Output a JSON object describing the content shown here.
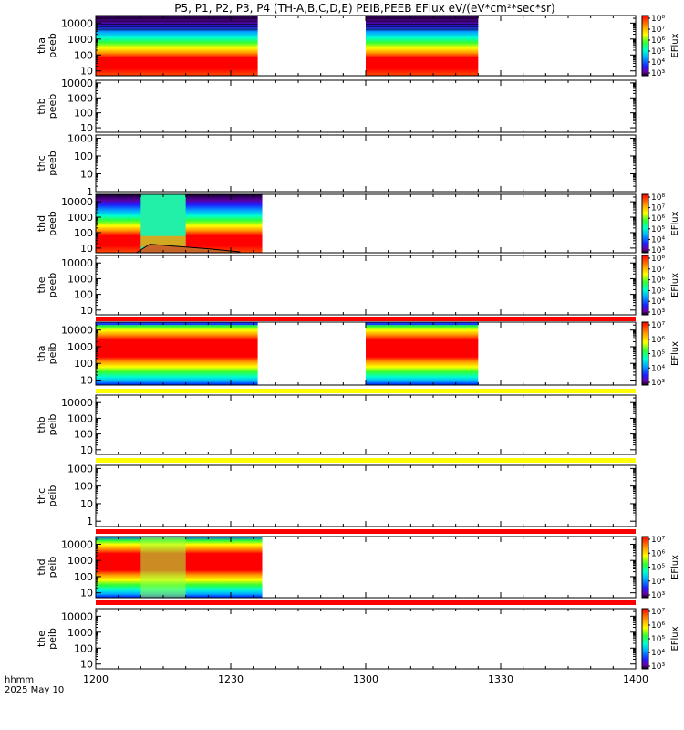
{
  "title": "P5, P1, P2, P3, P4 (TH-A,B,C,D,E) PEIB,PEEB EFlux eV/(eV*cm²*sec*sr)",
  "footer": {
    "label_line1": "hhmm",
    "label_line2": "2025 May 10"
  },
  "colors": {
    "red_bar": "#ff0000",
    "yellow_bar": "#ffff00"
  },
  "chart_data": {
    "type": "heatmap",
    "x_ticks": [
      "1200",
      "1230",
      "1300",
      "1330",
      "1400"
    ],
    "x_range": [
      "12:00",
      "14:00"
    ],
    "panels": [
      {
        "probe": "tha",
        "product": "peeb",
        "y_ticks": [
          "10",
          "100",
          "1000",
          "10000"
        ],
        "y_range": [
          5,
          30000
        ],
        "data_spans": [
          [
            "12:00",
            "12:36"
          ],
          [
            "13:00",
            "13:25"
          ]
        ],
        "style": "electron_a",
        "colorbar": {
          "ticks": [
            "10³",
            "10⁴",
            "10⁵",
            "10⁶",
            "10⁷",
            "10⁸"
          ],
          "label": "EFlux"
        }
      },
      {
        "probe": "thb",
        "product": "peeb",
        "y_ticks": [
          "10",
          "100",
          "1000",
          "10000"
        ],
        "y_range": [
          5,
          15000
        ],
        "data_spans": [],
        "style": "none",
        "colorbar": null
      },
      {
        "probe": "thc",
        "product": "peeb",
        "y_ticks": [
          "1",
          "10",
          "100",
          "1000"
        ],
        "y_range": [
          1,
          1500
        ],
        "data_spans": [],
        "style": "none",
        "colorbar": null
      },
      {
        "probe": "thd",
        "product": "peeb",
        "y_ticks": [
          "10",
          "100",
          "1000",
          "10000"
        ],
        "y_range": [
          5,
          30000
        ],
        "data_spans": [
          [
            "12:00",
            "12:37"
          ]
        ],
        "style": "electron_d",
        "colorbar": {
          "ticks": [
            "10³",
            "10⁴",
            "10⁵",
            "10⁶",
            "10⁷",
            "10⁸"
          ],
          "label": "EFlux"
        }
      },
      {
        "probe": "the",
        "product": "peeb",
        "y_ticks": [
          "10",
          "100",
          "1000",
          "10000"
        ],
        "y_range": [
          5,
          30000
        ],
        "data_spans": [],
        "style": "none",
        "colorbar": {
          "ticks": [
            "10³",
            "10⁴",
            "10⁵",
            "10⁶",
            "10⁷",
            "10⁸"
          ],
          "label": "EFlux"
        },
        "bar_below": "red"
      },
      {
        "probe": "tha",
        "product": "peib",
        "y_ticks": [
          "10",
          "100",
          "1000",
          "10000"
        ],
        "y_range": [
          5,
          30000
        ],
        "data_spans": [
          [
            "12:00",
            "12:36"
          ],
          [
            "13:00",
            "13:25"
          ]
        ],
        "style": "ion",
        "colorbar": {
          "ticks": [
            "10³",
            "10⁴",
            "10⁵",
            "10⁶",
            "10⁷"
          ],
          "label": "EFlux"
        },
        "bar_below": "yellow"
      },
      {
        "probe": "thb",
        "product": "peib",
        "y_ticks": [
          "10",
          "100",
          "1000",
          "10000"
        ],
        "y_range": [
          5,
          30000
        ],
        "data_spans": [],
        "style": "none",
        "colorbar": null,
        "bar_below": "yellow"
      },
      {
        "probe": "thc",
        "product": "peib",
        "y_ticks": [
          "1",
          "10",
          "100",
          "1000"
        ],
        "y_range": [
          0.5,
          1500
        ],
        "data_spans": [],
        "style": "none",
        "colorbar": null,
        "bar_below": "red"
      },
      {
        "probe": "thd",
        "product": "peib",
        "y_ticks": [
          "10",
          "100",
          "1000",
          "10000"
        ],
        "y_range": [
          5,
          30000
        ],
        "data_spans": [
          [
            "12:00",
            "12:37"
          ]
        ],
        "style": "ion_d",
        "colorbar": {
          "ticks": [
            "10³",
            "10⁴",
            "10⁵",
            "10⁶",
            "10⁷"
          ],
          "label": "EFlux"
        },
        "bar_below": "red"
      },
      {
        "probe": "the",
        "product": "peib",
        "y_ticks": [
          "10",
          "100",
          "1000",
          "10000"
        ],
        "y_range": [
          5,
          30000
        ],
        "data_spans": [],
        "style": "none",
        "colorbar": {
          "ticks": [
            "10³",
            "10⁴",
            "10⁵",
            "10⁶",
            "10⁷"
          ],
          "label": "EFlux"
        }
      }
    ]
  }
}
